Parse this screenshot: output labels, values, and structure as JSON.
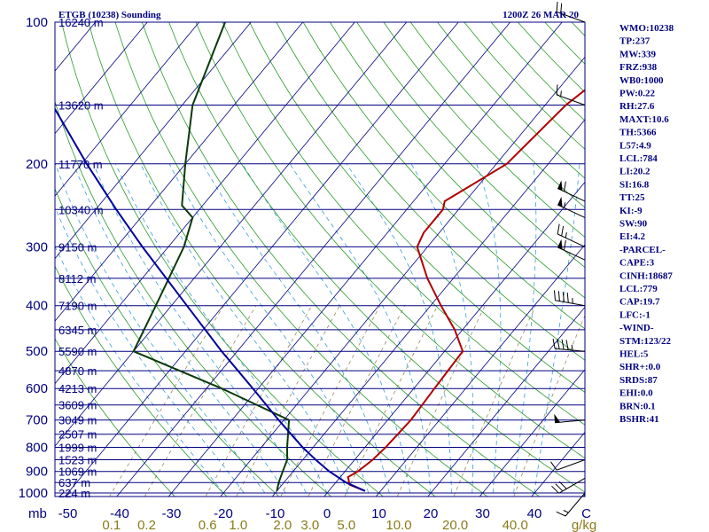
{
  "header": {
    "title": "ETGB (10238) Sounding",
    "time": "1200Z 26 MAR 20"
  },
  "colors": {
    "frame": "#000080",
    "isotherm": "#000080",
    "dry_adiabat": "#2a9a2a",
    "moist_adiabat": "#3aa0d8",
    "mixing_ratio": "#9a8a5a",
    "temperature": "#b00000",
    "dewpoint": "#0a3a0a",
    "parcel": "#000099",
    "wind": "#000000",
    "mr_label": "#8a7a1a"
  },
  "chart_data": {
    "type": "skew-t",
    "pressure_axis": {
      "unit": "mb",
      "scale": "log",
      "range": [
        1000,
        100
      ],
      "ticks": [
        100,
        200,
        300,
        400,
        500,
        600,
        700,
        800,
        900,
        1000
      ]
    },
    "temperature_axis": {
      "unit": "C",
      "ticks": [
        -50,
        -40,
        -30,
        -20,
        -10,
        0,
        10,
        20,
        30,
        40
      ],
      "tick_labels": [
        "-50",
        "-40",
        "-30",
        "-20",
        "-10",
        "0",
        "10",
        "20",
        "30",
        "40"
      ],
      "unit_label": "C"
    },
    "mixing_ratio_axis": {
      "unit": "g/kg",
      "labels": [
        "0.1",
        "0.2",
        "0.6",
        "1.0",
        "2.0",
        "3.0",
        "5.0",
        "10.0",
        "20.0",
        "40.0"
      ],
      "values": [
        0.1,
        0.2,
        0.6,
        1.0,
        2.0,
        3.0,
        5.0,
        10.0,
        20.0,
        40.0
      ]
    },
    "height_levels": [
      {
        "p": 100,
        "label": "16240 m"
      },
      {
        "p": 150,
        "label": "13620 m"
      },
      {
        "p": 200,
        "label": "11770 m"
      },
      {
        "p": 250,
        "label": "10340 m"
      },
      {
        "p": 300,
        "label": "9150 m"
      },
      {
        "p": 350,
        "label": "8112 m"
      },
      {
        "p": 400,
        "label": "7190 m"
      },
      {
        "p": 450,
        "label": "6345 m"
      },
      {
        "p": 500,
        "label": "5590 m"
      },
      {
        "p": 550,
        "label": "4870 m"
      },
      {
        "p": 600,
        "label": "4213 m"
      },
      {
        "p": 650,
        "label": "3609 m"
      },
      {
        "p": 700,
        "label": "3049 m"
      },
      {
        "p": 750,
        "label": "2507 m"
      },
      {
        "p": 800,
        "label": "1999 m"
      },
      {
        "p": 850,
        "label": "1523 m"
      },
      {
        "p": 900,
        "label": "1069 m"
      },
      {
        "p": 950,
        "label": "637 m"
      },
      {
        "p": 1000,
        "label": "224 m"
      }
    ],
    "series": [
      {
        "name": "temperature",
        "points": [
          {
            "p": 990,
            "t": 7.0
          },
          {
            "p": 960,
            "t": 3.0
          },
          {
            "p": 925,
            "t": 1.5
          },
          {
            "p": 900,
            "t": 2.5
          },
          {
            "p": 850,
            "t": 3.5
          },
          {
            "p": 800,
            "t": 4.0
          },
          {
            "p": 700,
            "t": 4.5
          },
          {
            "p": 600,
            "t": 4.0
          },
          {
            "p": 500,
            "t": 3.5
          },
          {
            "p": 450,
            "t": -1.5
          },
          {
            "p": 400,
            "t": -8.0
          },
          {
            "p": 350,
            "t": -15.0
          },
          {
            "p": 300,
            "t": -22.0
          },
          {
            "p": 280,
            "t": -23.0
          },
          {
            "p": 250,
            "t": -23.0
          },
          {
            "p": 240,
            "t": -24.0
          },
          {
            "p": 200,
            "t": -18.0
          },
          {
            "p": 150,
            "t": -16.0
          },
          {
            "p": 100,
            "t": -9.0
          }
        ]
      },
      {
        "name": "dewpoint",
        "points": [
          {
            "p": 990,
            "t": -10.0
          },
          {
            "p": 950,
            "t": -11.0
          },
          {
            "p": 900,
            "t": -12.0
          },
          {
            "p": 850,
            "t": -13.0
          },
          {
            "p": 800,
            "t": -15.0
          },
          {
            "p": 700,
            "t": -19.0
          },
          {
            "p": 600,
            "t": -37.0
          },
          {
            "p": 500,
            "t": -60.0
          },
          {
            "p": 400,
            "t": -63.0
          },
          {
            "p": 300,
            "t": -67.0
          },
          {
            "p": 260,
            "t": -70.0
          },
          {
            "p": 245,
            "t": -74.0
          },
          {
            "p": 200,
            "t": -80.0
          },
          {
            "p": 150,
            "t": -88.0
          },
          {
            "p": 100,
            "t": -95.0
          }
        ]
      },
      {
        "name": "parcel",
        "points": [
          {
            "p": 990,
            "t": 7.0
          },
          {
            "p": 950,
            "t": 2.0
          },
          {
            "p": 900,
            "t": -3.0
          },
          {
            "p": 850,
            "t": -7.5
          },
          {
            "p": 800,
            "t": -12.0
          },
          {
            "p": 700,
            "t": -21.0
          },
          {
            "p": 600,
            "t": -31.0
          },
          {
            "p": 500,
            "t": -43.0
          },
          {
            "p": 400,
            "t": -57.0
          },
          {
            "p": 300,
            "t": -75.0
          },
          {
            "p": 250,
            "t": -86.0
          },
          {
            "p": 200,
            "t": -99.0
          },
          {
            "p": 150,
            "t": -115.0
          },
          {
            "p": 120,
            "t": -127.0
          }
        ]
      }
    ],
    "winds": [
      {
        "p": 100,
        "dir": 290,
        "speed": 20
      },
      {
        "p": 150,
        "dir": 290,
        "speed": 15
      },
      {
        "p": 240,
        "dir": 295,
        "speed": 60
      },
      {
        "p": 260,
        "dir": 295,
        "speed": 55
      },
      {
        "p": 300,
        "dir": 295,
        "speed": 25
      },
      {
        "p": 320,
        "dir": 295,
        "speed": 60
      },
      {
        "p": 400,
        "dir": 280,
        "speed": 45
      },
      {
        "p": 500,
        "dir": 275,
        "speed": 45
      },
      {
        "p": 700,
        "dir": 265,
        "speed": 50
      },
      {
        "p": 850,
        "dir": 250,
        "speed": 10
      },
      {
        "p": 930,
        "dir": 240,
        "speed": 30
      },
      {
        "p": 1000,
        "dir": 220,
        "speed": 15
      }
    ],
    "indices": [
      "WMO:10238",
      "TP:237",
      "MW:339",
      "FRZ:938",
      "WB0:1000",
      "PW:0.22",
      "RH:27.6",
      "MAXT:10.6",
      "TH:5366",
      "L57:4.9",
      "LCL:784",
      "LI:20.2",
      "SI:16.8",
      "TT:25",
      "KI:-9",
      "SW:90",
      "EI:4.2",
      "-PARCEL-",
      "CAPE:3",
      "CINH:18687",
      "LCL:779",
      "CAP:19.7",
      "LFC:-1",
      "-WIND-",
      "STM:123/22",
      "HEL:5",
      "SHR+:0.0",
      "SRDS:87",
      "EHI:0.0",
      "BRN:0.1",
      "BSHR:41"
    ]
  }
}
